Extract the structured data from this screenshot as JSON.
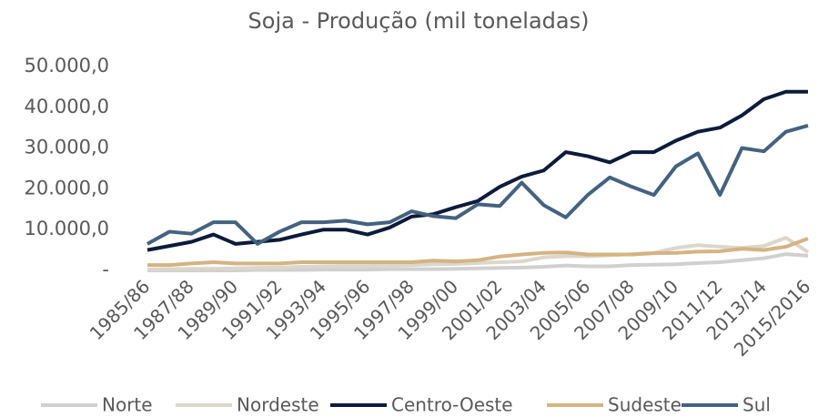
{
  "chart_data": {
    "type": "line",
    "title": "Soja - Produção (mil toneladas)",
    "categories": [
      "1985/86",
      null,
      "1987/88",
      null,
      "1989/90",
      null,
      "1991/92",
      null,
      "1993/94",
      null,
      "1995/96",
      null,
      "1997/98",
      null,
      "1999/00",
      null,
      "2001/02",
      null,
      "2003/04",
      null,
      "2005/06",
      null,
      "2007/08",
      null,
      "2009/10",
      null,
      "2011/12",
      null,
      "2013/14",
      null,
      "2015/2016"
    ],
    "ylim": [
      0,
      50000
    ],
    "yticks": [
      {
        "value": 0,
        "label": "-"
      },
      {
        "value": 10000,
        "label": "10.000,0"
      },
      {
        "value": 20000,
        "label": "20.000,0"
      },
      {
        "value": 30000,
        "label": "30.000,0"
      },
      {
        "value": 40000,
        "label": "40.000,0"
      },
      {
        "value": 50000,
        "label": "50.000,0"
      }
    ],
    "grid": false,
    "legend": "bottom",
    "series": [
      {
        "name": "Norte",
        "color": "#d0d0d0",
        "values": [
          0,
          0,
          0,
          0,
          0,
          100,
          100,
          100,
          200,
          200,
          200,
          300,
          300,
          300,
          400,
          500,
          600,
          700,
          900,
          1200,
          1000,
          1000,
          1300,
          1400,
          1500,
          1800,
          2000,
          2500,
          3000,
          4000,
          3600
        ]
      },
      {
        "name": "Nordeste",
        "color": "#dcd6cb",
        "values": [
          200,
          300,
          400,
          400,
          500,
          600,
          700,
          900,
          1000,
          1100,
          1100,
          1200,
          1300,
          1500,
          1600,
          1800,
          2000,
          2200,
          3200,
          3500,
          3500,
          3700,
          4000,
          4300,
          5500,
          6200,
          5800,
          5500,
          6000,
          8000,
          4500
        ]
      },
      {
        "name": "Centro-Oeste",
        "color": "#0d1b3a",
        "values": [
          5000,
          6000,
          7000,
          8800,
          6500,
          7000,
          7500,
          8800,
          10000,
          10000,
          8800,
          10500,
          13200,
          13800,
          15500,
          17000,
          20500,
          23000,
          24500,
          29000,
          28000,
          26500,
          29000,
          29000,
          31800,
          34000,
          35000,
          38000,
          42000,
          43800,
          43800
        ]
      },
      {
        "name": "Sudeste",
        "color": "#d4b483",
        "values": [
          1300,
          1300,
          1700,
          2000,
          1700,
          1700,
          1700,
          2000,
          2000,
          2000,
          2000,
          2000,
          2000,
          2400,
          2200,
          2500,
          3400,
          3900,
          4300,
          4400,
          3900,
          3900,
          3900,
          4200,
          4300,
          4600,
          4700,
          5300,
          5000,
          5800,
          7800
        ]
      },
      {
        "name": "Sul",
        "color": "#44627f",
        "values": [
          6500,
          9500,
          9000,
          11800,
          11800,
          6500,
          9500,
          11800,
          11800,
          12200,
          11300,
          11800,
          14500,
          13300,
          12800,
          16200,
          15800,
          21500,
          16000,
          13000,
          18500,
          22800,
          20500,
          18500,
          25500,
          28700,
          18500,
          30000,
          29200,
          34000,
          35500
        ]
      }
    ]
  }
}
